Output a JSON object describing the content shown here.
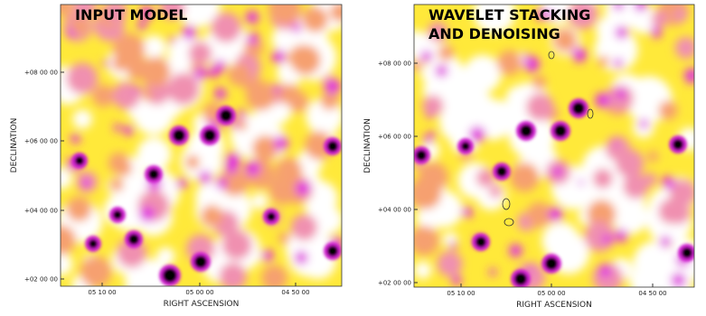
{
  "panels": [
    {
      "title_lines": [
        "INPUT MODEL"
      ],
      "x_axis_label": "RIGHT ASCENSION",
      "y_axis_label": "DECLINATION",
      "x_tick_labels": [
        "05 10 00",
        "05 00 00",
        "04 50 00"
      ],
      "y_tick_labels": [
        "+08 00 00",
        "+06 00 00",
        "+04 00 00",
        "+02 00 00"
      ]
    },
    {
      "title_lines": [
        "WAVELET STACKING",
        "AND DENOISING"
      ],
      "x_axis_label": "RIGHT ASCENSION",
      "y_axis_label": "DECLINATION",
      "x_tick_labels": [
        "05 10 00",
        "05 00 00",
        "04 50 00"
      ],
      "y_tick_labels": [
        "+08 00 00",
        "+06 00 00",
        "+04 00 00",
        "+02 00 00"
      ]
    }
  ]
}
